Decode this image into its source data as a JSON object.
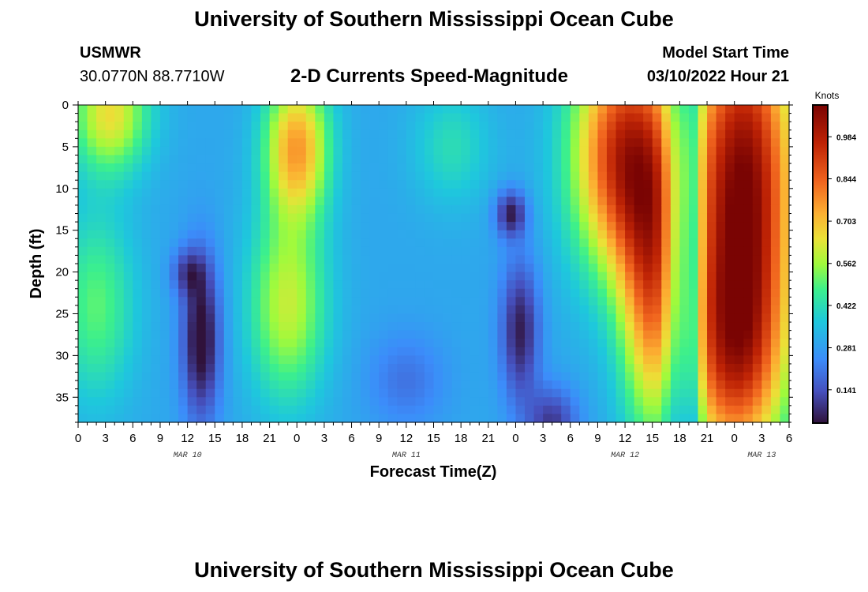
{
  "header": {
    "title": "University of Southern Mississippi Ocean Cube",
    "station_name": "USMWR",
    "station_coords": "30.0770N  88.7710W",
    "subtitle": "2-D Currents Speed-Magnitude",
    "model_label": "Model Start Time",
    "model_time": "03/10/2022 Hour 21"
  },
  "footer": {
    "title": "University of Southern Mississippi Ocean Cube"
  },
  "chart_data": {
    "type": "heatmap",
    "title": "2-D Currents Speed-Magnitude",
    "xlabel": "Forecast Time(Z)",
    "ylabel": "Depth (ft)",
    "x_tick_labels": [
      "0",
      "3",
      "6",
      "9",
      "12",
      "15",
      "18",
      "21",
      "0",
      "3",
      "6",
      "9",
      "12",
      "15",
      "18",
      "21",
      "0",
      "3",
      "6",
      "9",
      "12",
      "15",
      "18",
      "21",
      "0",
      "3",
      "6"
    ],
    "x_range_hours": [
      0,
      78
    ],
    "date_labels": [
      {
        "label": "MAR 10",
        "hour": 12
      },
      {
        "label": "MAR 11",
        "hour": 36
      },
      {
        "label": "MAR 12",
        "hour": 60
      },
      {
        "label": "MAR 13",
        "hour": 75
      }
    ],
    "y_ticks": [
      0,
      5,
      10,
      15,
      20,
      25,
      30,
      35
    ],
    "y_range": [
      0,
      38
    ],
    "y_inverted": true,
    "colorbar": {
      "unit": "Knots",
      "ticks": [
        0.141,
        0.281,
        0.422,
        0.562,
        0.703,
        0.844,
        0.984
      ],
      "range": [
        0.03,
        1.09
      ]
    },
    "field_description": "Approximate current speed (knots) by forecast hour and depth, estimated from the colour field",
    "blobs": [
      {
        "t": 3.5,
        "d": 1,
        "st": 3,
        "sd": 5,
        "a": 0.35
      },
      {
        "t": 2,
        "d": 24,
        "st": 3,
        "sd": 8,
        "a": 0.2
      },
      {
        "t": 24,
        "d": 5,
        "st": 2.5,
        "sd": 6,
        "a": 0.45
      },
      {
        "t": 23,
        "d": 24,
        "st": 3,
        "sd": 8,
        "a": 0.3
      },
      {
        "t": 13.5,
        "d": 28,
        "st": 1.5,
        "sd": 7,
        "a": -0.3
      },
      {
        "t": 12,
        "d": 20,
        "st": 1.3,
        "sd": 2,
        "a": -0.15
      },
      {
        "t": 36,
        "d": 33,
        "st": 3,
        "sd": 4,
        "a": -0.1
      },
      {
        "t": 47.5,
        "d": 13,
        "st": 1.2,
        "sd": 2,
        "a": -0.25
      },
      {
        "t": 48.5,
        "d": 27,
        "st": 1.5,
        "sd": 6,
        "a": -0.25
      },
      {
        "t": 52,
        "d": 38,
        "st": 2,
        "sd": 3,
        "a": -0.2
      },
      {
        "t": 41,
        "d": 5,
        "st": 3,
        "sd": 5,
        "a": 0.12
      },
      {
        "t": 60,
        "d": 6,
        "st": 4,
        "sd": 10,
        "a": 0.65
      },
      {
        "t": 63,
        "d": 22,
        "st": 2.5,
        "sd": 12,
        "a": 0.45
      },
      {
        "t": 73,
        "d": 8,
        "st": 4,
        "sd": 14,
        "a": 0.75
      },
      {
        "t": 72,
        "d": 30,
        "st": 4,
        "sd": 10,
        "a": 0.55
      },
      {
        "t": 65.5,
        "d": 19,
        "st": 1,
        "sd": 18,
        "a": -0.25
      },
      {
        "t": 67.5,
        "d": 19,
        "st": 0.8,
        "sd": 20,
        "a": -0.3
      }
    ],
    "base_speed": 0.3,
    "grid": {
      "hours_step": 1,
      "depth_step": 1
    }
  }
}
